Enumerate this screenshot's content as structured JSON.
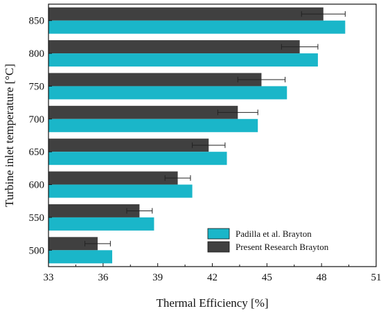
{
  "chart_data": {
    "type": "bar",
    "orientation": "horizontal",
    "categories": [
      "500",
      "550",
      "600",
      "650",
      "700",
      "750",
      "800",
      "850"
    ],
    "series": [
      {
        "name": "Padilla et al. Brayton",
        "color": "#1ab6c9",
        "values": [
          36.5,
          38.8,
          40.9,
          42.8,
          44.5,
          46.1,
          47.8,
          49.3
        ]
      },
      {
        "name": "Present Research Brayton",
        "color": "#404040",
        "values": [
          35.7,
          38.0,
          40.1,
          41.8,
          43.4,
          44.7,
          46.8,
          48.1
        ],
        "error": [
          0.7,
          0.7,
          0.7,
          0.9,
          1.1,
          1.3,
          1.0,
          1.2
        ]
      }
    ],
    "xlabel": "Thermal Efficiency [%]",
    "ylabel": "Turbine inlet temperature [°C]",
    "xlim": [
      33,
      51
    ],
    "xticks": [
      "33",
      "36",
      "39",
      "42",
      "45",
      "48",
      "51"
    ],
    "legend_position": "bottom-right",
    "grid": false
  }
}
